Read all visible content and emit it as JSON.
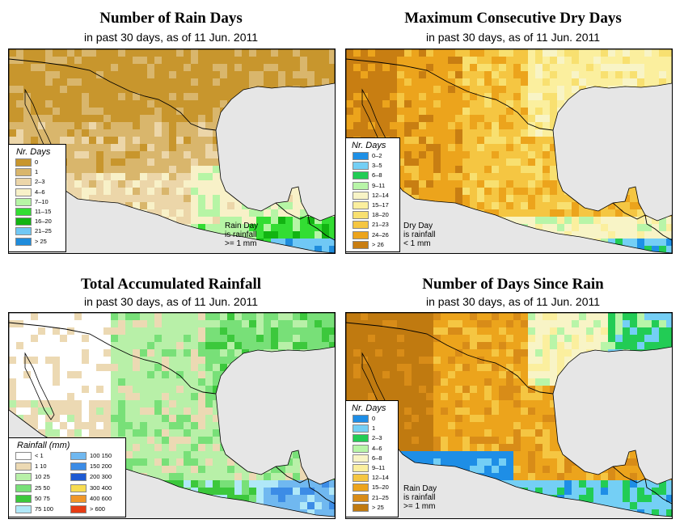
{
  "panels": [
    {
      "id": "rain-days",
      "title": "Number of Rain Days",
      "subtitle": "in past 30 days, as of  11 Jun. 2011",
      "legend_title": "Nr. Days",
      "legend": [
        {
          "label": "0",
          "color": "#c8962d"
        },
        {
          "label": "1",
          "color": "#d9b66c"
        },
        {
          "label": "2–3",
          "color": "#ecd6a9"
        },
        {
          "label": "4–6",
          "color": "#f8f1c8"
        },
        {
          "label": "7–10",
          "color": "#b6f5a5"
        },
        {
          "label": "11–15",
          "color": "#33dd33"
        },
        {
          "label": "16–20",
          "color": "#12b412"
        },
        {
          "label": "21–25",
          "color": "#70c8f5"
        },
        {
          "label": "> 25",
          "color": "#1f8cdc"
        }
      ],
      "note": [
        "Rain Day",
        "is rainfall",
        ">= 1 mm"
      ]
    },
    {
      "id": "dry-days",
      "title": "Maximum Consecutive Dry Days",
      "subtitle": "in past 30 days, as of  11 Jun. 2011",
      "legend_title": "Nr. Days",
      "legend": [
        {
          "label": "0–2",
          "color": "#1e90e6"
        },
        {
          "label": "3–5",
          "color": "#74cff5"
        },
        {
          "label": "6–8",
          "color": "#22cc55"
        },
        {
          "label": "9–11",
          "color": "#b8f5a8"
        },
        {
          "label": "12–14",
          "color": "#f8f4c6"
        },
        {
          "label": "15–17",
          "color": "#fbef9e"
        },
        {
          "label": "18–20",
          "color": "#f8e070"
        },
        {
          "label": "21–23",
          "color": "#f5c642"
        },
        {
          "label": "24–26",
          "color": "#eca41c"
        },
        {
          "label": "> 26",
          "color": "#c87e12"
        }
      ],
      "note": [
        "Dry Day",
        "is rainfall",
        "< 1 mm"
      ]
    },
    {
      "id": "total-rain",
      "title": "Total Accumulated Rainfall",
      "subtitle": "in past 30 days, as of  11 Jun. 2011",
      "legend_title": "Rainfall (mm)",
      "legend": [
        {
          "label": "< 1",
          "color": "#ffffff"
        },
        {
          "label": "1   10",
          "color": "#ecd9b3"
        },
        {
          "label": "10   25",
          "color": "#b8f0a8"
        },
        {
          "label": "25   50",
          "color": "#78e078"
        },
        {
          "label": "50   75",
          "color": "#3cc83c"
        },
        {
          "label": "75  100",
          "color": "#b0e8f8"
        },
        {
          "label": "100  150",
          "color": "#70b8f0"
        },
        {
          "label": "150  200",
          "color": "#3c8ce6"
        },
        {
          "label": "200  300",
          "color": "#1e5ad2"
        },
        {
          "label": "300  400",
          "color": "#f8dc50"
        },
        {
          "label": "400  600",
          "color": "#f09628"
        },
        {
          "label": "> 600",
          "color": "#e63c14"
        }
      ],
      "note": []
    },
    {
      "id": "since-rain",
      "title": "Number of Days Since Rain",
      "subtitle": "in past 30 days, as of  11 Jun. 2011",
      "legend_title": "Nr. Days",
      "legend": [
        {
          "label": "0",
          "color": "#1e8ee6"
        },
        {
          "label": "1",
          "color": "#74cff5"
        },
        {
          "label": "2–3",
          "color": "#22cc55"
        },
        {
          "label": "4–6",
          "color": "#b8f5a8"
        },
        {
          "label": "6–8",
          "color": "#f8f4c6"
        },
        {
          "label": "9–11",
          "color": "#fbef9e"
        },
        {
          "label": "12–14",
          "color": "#f5c642"
        },
        {
          "label": "15–20",
          "color": "#eca41c"
        },
        {
          "label": "21–25",
          "color": "#d88c18"
        },
        {
          "label": "> 25",
          "color": "#c07a10"
        }
      ],
      "note": [
        "Rain Day",
        "is rainfall",
        ">= 1 mm"
      ]
    }
  ],
  "map_colors": {
    "ocean": "#e6e6e6",
    "usa_fill": "#f8f4c6",
    "border": "#000000"
  }
}
